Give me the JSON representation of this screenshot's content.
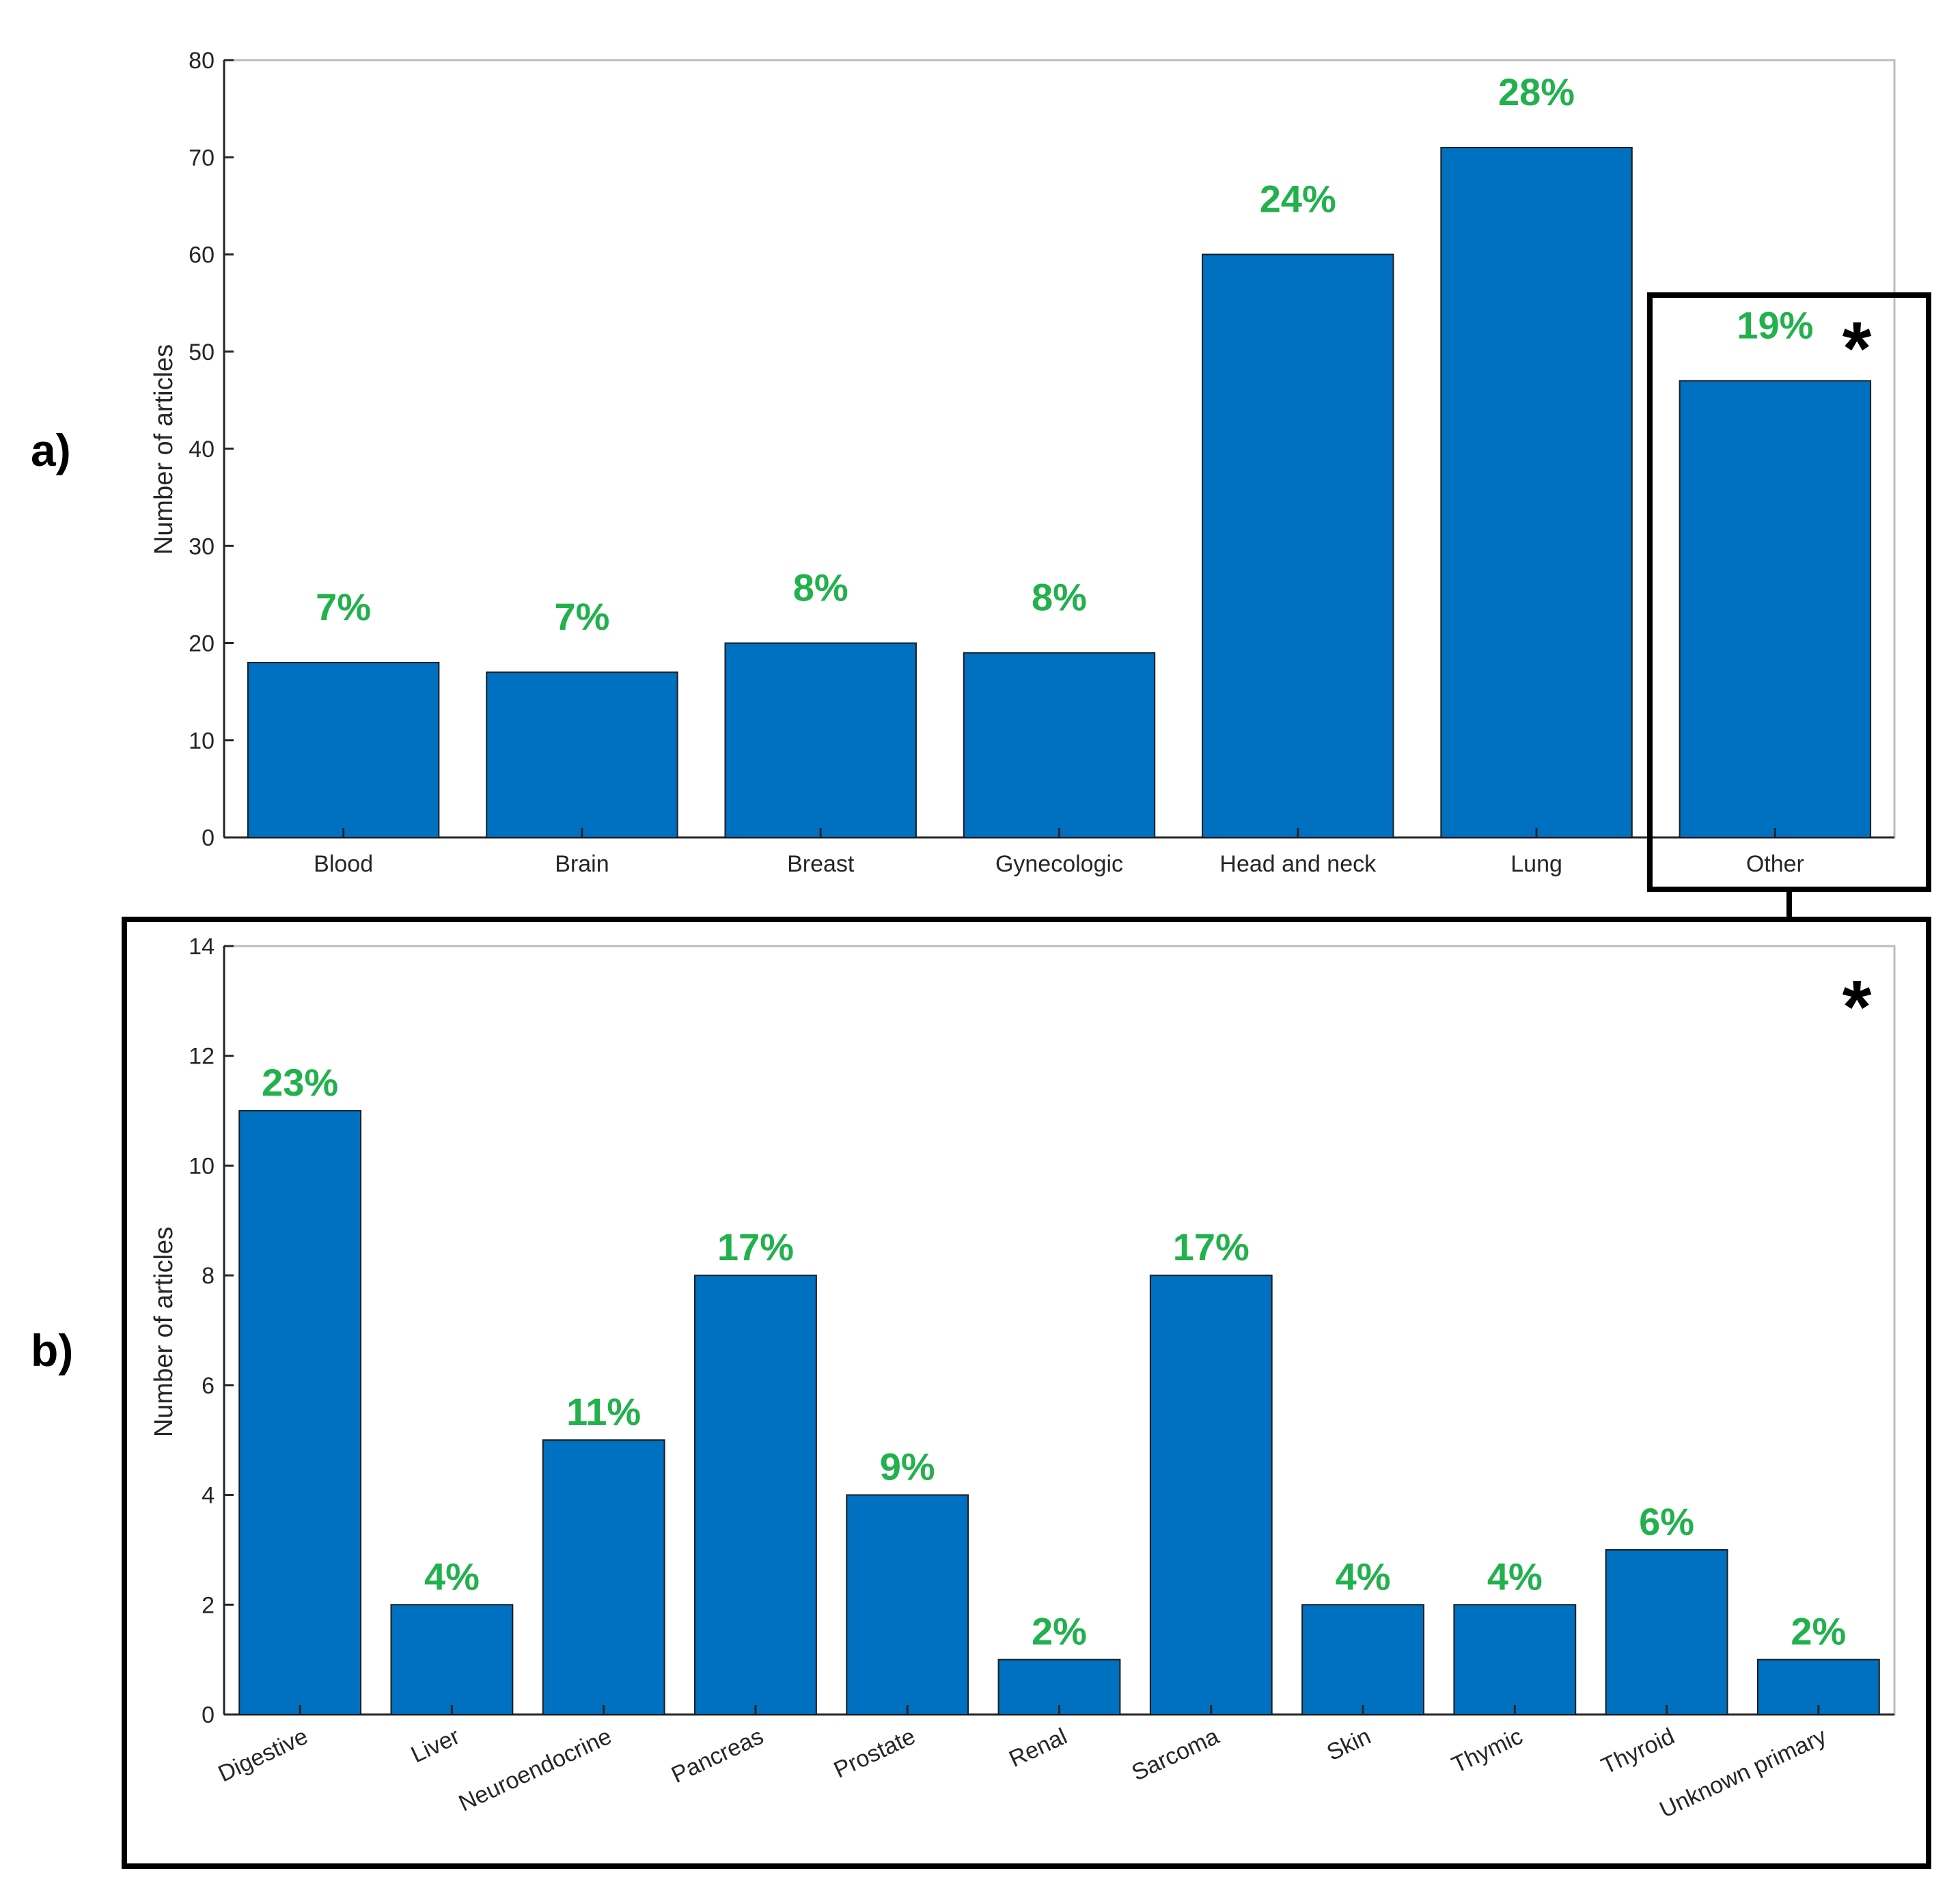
{
  "colors": {
    "bar": "#0070c0",
    "percent": "#22b14c",
    "axis": "#262626",
    "frame": "#000000"
  },
  "marker": "*",
  "chart_data": [
    {
      "panel": "a)",
      "type": "bar",
      "ylabel": "Number of articles",
      "xlabel": "",
      "ylim": [
        0,
        80
      ],
      "yticks": [
        0,
        10,
        20,
        30,
        40,
        50,
        60,
        70,
        80
      ],
      "categories": [
        "Blood",
        "Brain",
        "Breast",
        "Gynecologic",
        "Head and  neck",
        "Lung",
        "Other"
      ],
      "values": [
        18,
        17,
        20,
        19,
        60,
        71,
        47
      ],
      "labels": [
        "7%",
        "7%",
        "8%",
        "8%",
        "24%",
        "28%",
        "19%"
      ],
      "grid": false
    },
    {
      "panel": "b)",
      "type": "bar",
      "ylabel": "Number of articles",
      "xlabel": "",
      "ylim": [
        0,
        14
      ],
      "yticks": [
        0,
        2,
        4,
        6,
        8,
        10,
        12,
        14
      ],
      "categories": [
        "Digestive",
        "Liver",
        "Neuroendocrine",
        "Pancreas",
        "Prostate",
        "Renal",
        "Sarcoma",
        "Skin",
        "Thymic",
        "Thyroid",
        "Unknown primary"
      ],
      "values": [
        11,
        2,
        5,
        8,
        4,
        1,
        8,
        2,
        2,
        3,
        1
      ],
      "labels": [
        "23%",
        "4%",
        "11%",
        "17%",
        "9%",
        "2%",
        "17%",
        "4%",
        "4%",
        "6%",
        "2%"
      ],
      "grid": false
    }
  ]
}
